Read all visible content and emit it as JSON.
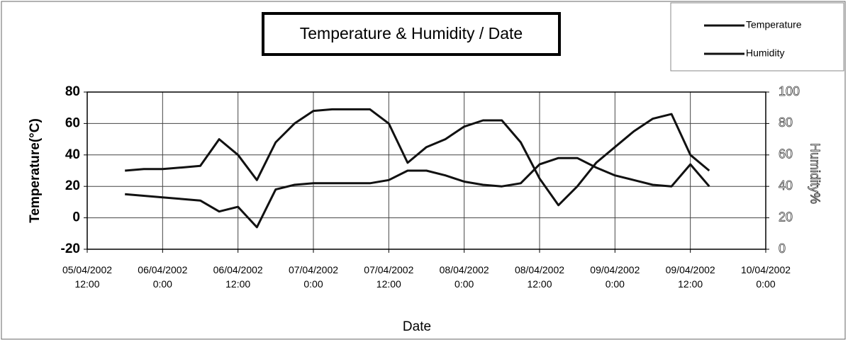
{
  "chart_data": {
    "type": "line",
    "title": "Temperature & Humidity / Date",
    "xlabel": "Date",
    "ylabel": "Temperature(°C)",
    "y2label": "Humidity%",
    "x": [
      "2002-04-05 18:00",
      "2002-04-05 21:00",
      "2002-04-06 00:00",
      "2002-04-06 03:00",
      "2002-04-06 06:00",
      "2002-04-06 09:00",
      "2002-04-06 12:00",
      "2002-04-06 15:00",
      "2002-04-06 18:00",
      "2002-04-06 21:00",
      "2002-04-07 00:00",
      "2002-04-07 03:00",
      "2002-04-07 06:00",
      "2002-04-07 09:00",
      "2002-04-07 12:00",
      "2002-04-07 15:00",
      "2002-04-07 18:00",
      "2002-04-07 21:00",
      "2002-04-08 00:00",
      "2002-04-08 03:00",
      "2002-04-08 06:00",
      "2002-04-08 09:00",
      "2002-04-08 12:00",
      "2002-04-08 15:00",
      "2002-04-08 18:00",
      "2002-04-08 21:00",
      "2002-04-09 00:00",
      "2002-04-09 03:00",
      "2002-04-09 06:00",
      "2002-04-09 09:00",
      "2002-04-09 12:00",
      "2002-04-09 15:00"
    ],
    "series": [
      {
        "name": "Temperature",
        "color": "#111111",
        "values": [
          15,
          14,
          13,
          12,
          11,
          4,
          7,
          -6,
          18,
          21,
          22,
          22,
          22,
          22,
          24,
          30,
          30,
          27,
          23,
          21,
          20,
          22,
          34,
          38,
          38,
          32,
          27,
          24,
          21,
          20,
          34,
          20
        ]
      },
      {
        "name": "Humidity",
        "color": "#111111",
        "axis": "y2",
        "values": [
          50,
          51,
          51,
          52,
          53,
          70,
          60,
          44,
          68,
          80,
          88,
          89,
          89,
          89,
          80,
          55,
          65,
          70,
          78,
          82,
          82,
          68,
          45,
          28,
          40,
          55,
          65,
          75,
          83,
          86,
          60,
          50
        ]
      }
    ],
    "xlim": [
      "2002-04-05 12:00",
      "2002-04-10 00:00"
    ],
    "xticks": [
      {
        "value": "2002-04-05 12:00",
        "label": "05/04/2002 12:00"
      },
      {
        "value": "2002-04-06 00:00",
        "label": "06/04/2002 0:00"
      },
      {
        "value": "2002-04-06 12:00",
        "label": "06/04/2002 12:00"
      },
      {
        "value": "2002-04-07 00:00",
        "label": "07/04/2002 0:00"
      },
      {
        "value": "2002-04-07 12:00",
        "label": "07/04/2002 12:00"
      },
      {
        "value": "2002-04-08 00:00",
        "label": "08/04/2002 0:00"
      },
      {
        "value": "2002-04-08 12:00",
        "label": "08/04/2002 12:00"
      },
      {
        "value": "2002-04-09 00:00",
        "label": "09/04/2002 0:00"
      },
      {
        "value": "2002-04-09 12:00",
        "label": "09/04/2002 12:00"
      },
      {
        "value": "2002-04-10 00:00",
        "label": "10/04/2002 0:00"
      }
    ],
    "ylim": [
      -20,
      80
    ],
    "yticks": [
      -20,
      0,
      20,
      40,
      60,
      80
    ],
    "y2lim": [
      0,
      100
    ],
    "y2ticks": [
      0,
      20,
      40,
      60,
      80,
      100
    ],
    "grid": true
  }
}
